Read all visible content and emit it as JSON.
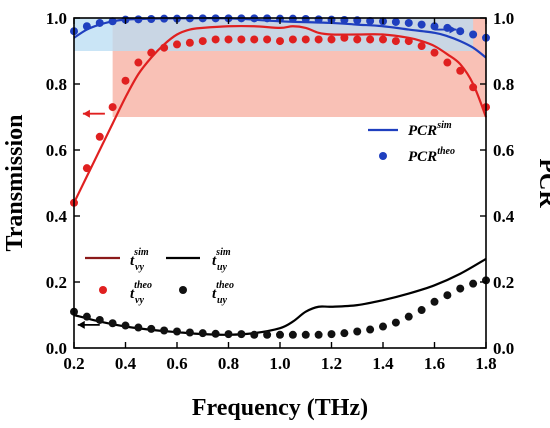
{
  "chart_data": {
    "type": "line",
    "xlabel": "Frequency (THz)",
    "ylabel_left": "Transmission",
    "ylabel_right": "PCR",
    "xlim": [
      0.2,
      1.8
    ],
    "ylim_left": [
      0.0,
      1.0
    ],
    "ylim_right": [
      0.0,
      1.0
    ],
    "x_ticks": [
      "0.2",
      "0.4",
      "0.6",
      "0.8",
      "1.0",
      "1.2",
      "1.4",
      "1.6",
      "1.8"
    ],
    "y_ticks_left": [
      "0.0",
      "0.2",
      "0.4",
      "0.6",
      "0.8",
      "1.0"
    ],
    "y_ticks_right": [
      "0.0",
      "0.2",
      "0.4",
      "0.6",
      "0.8",
      "1.0"
    ],
    "grid": false,
    "shaded_regions": [
      {
        "color": "#f9c1b6",
        "x": [
          0.35,
          1.8
        ],
        "y": [
          0.7,
          1.0
        ]
      },
      {
        "color": "#b8dcf3",
        "x": [
          0.2,
          1.75
        ],
        "y": [
          0.9,
          1.0
        ]
      }
    ],
    "arrows": [
      {
        "direction": "left",
        "color": "#e02020",
        "at_x": 0.32,
        "at_y": 0.71
      },
      {
        "direction": "right",
        "color": "#1f3fbf",
        "at_x": 1.6,
        "at_y": 0.965
      },
      {
        "direction": "left",
        "color": "#000000",
        "at_x": 0.3,
        "at_y": 0.07
      }
    ],
    "series": [
      {
        "key": "t_vy_sim",
        "kind": "line",
        "color": "#e02020",
        "axis": "left",
        "legend_main": "t",
        "legend_sub": "vy",
        "legend_sup": "sim",
        "x": [
          0.2,
          0.25,
          0.3,
          0.35,
          0.4,
          0.45,
          0.5,
          0.55,
          0.6,
          0.65,
          0.7,
          0.8,
          0.9,
          1.0,
          1.05,
          1.1,
          1.15,
          1.2,
          1.3,
          1.4,
          1.5,
          1.55,
          1.6,
          1.65,
          1.7,
          1.75,
          1.8
        ],
        "y": [
          0.44,
          0.52,
          0.6,
          0.68,
          0.76,
          0.83,
          0.88,
          0.92,
          0.95,
          0.965,
          0.97,
          0.975,
          0.975,
          0.97,
          0.975,
          0.97,
          0.955,
          0.95,
          0.95,
          0.95,
          0.94,
          0.93,
          0.915,
          0.89,
          0.86,
          0.8,
          0.7
        ]
      },
      {
        "key": "t_uy_sim",
        "kind": "line",
        "color": "#000000",
        "axis": "left",
        "legend_main": "t",
        "legend_sub": "uy",
        "legend_sup": "sim",
        "x": [
          0.2,
          0.3,
          0.4,
          0.5,
          0.6,
          0.7,
          0.8,
          0.9,
          1.0,
          1.05,
          1.1,
          1.15,
          1.2,
          1.3,
          1.4,
          1.5,
          1.6,
          1.7,
          1.8
        ],
        "y": [
          0.1,
          0.08,
          0.065,
          0.055,
          0.048,
          0.042,
          0.04,
          0.045,
          0.06,
          0.08,
          0.11,
          0.125,
          0.125,
          0.13,
          0.145,
          0.165,
          0.19,
          0.225,
          0.27
        ]
      },
      {
        "key": "PCR_sim",
        "kind": "line",
        "color": "#1f3fbf",
        "axis": "right",
        "legend_main": "PCR",
        "legend_sup": "sim",
        "x": [
          0.2,
          0.25,
          0.3,
          0.35,
          0.4,
          0.5,
          0.6,
          0.8,
          1.0,
          1.2,
          1.3,
          1.4,
          1.5,
          1.6,
          1.65,
          1.7,
          1.75,
          1.8
        ],
        "y": [
          0.94,
          0.965,
          0.98,
          0.99,
          0.995,
          0.998,
          0.999,
          0.999,
          0.99,
          0.985,
          0.98,
          0.975,
          0.965,
          0.955,
          0.945,
          0.93,
          0.91,
          0.88
        ]
      },
      {
        "key": "t_vy_theo",
        "kind": "scatter",
        "color": "#e02020",
        "axis": "left",
        "legend_main": "t",
        "legend_sub": "vy",
        "legend_sup": "theo",
        "x": [
          0.2,
          0.25,
          0.3,
          0.35,
          0.4,
          0.45,
          0.5,
          0.55,
          0.6,
          0.65,
          0.7,
          0.75,
          0.8,
          0.85,
          0.9,
          0.95,
          1.0,
          1.05,
          1.1,
          1.15,
          1.2,
          1.25,
          1.3,
          1.35,
          1.4,
          1.45,
          1.5,
          1.55,
          1.6,
          1.65,
          1.7,
          1.75,
          1.8
        ],
        "y": [
          0.44,
          0.545,
          0.64,
          0.73,
          0.81,
          0.865,
          0.895,
          0.91,
          0.92,
          0.925,
          0.93,
          0.935,
          0.935,
          0.935,
          0.935,
          0.935,
          0.93,
          0.935,
          0.935,
          0.935,
          0.935,
          0.94,
          0.935,
          0.935,
          0.935,
          0.93,
          0.93,
          0.915,
          0.895,
          0.865,
          0.84,
          0.79,
          0.73
        ]
      },
      {
        "key": "t_uy_theo",
        "kind": "scatter",
        "color": "#111111",
        "axis": "left",
        "legend_main": "t",
        "legend_sub": "uy",
        "legend_sup": "theo",
        "x": [
          0.2,
          0.25,
          0.3,
          0.35,
          0.4,
          0.45,
          0.5,
          0.55,
          0.6,
          0.65,
          0.7,
          0.75,
          0.8,
          0.85,
          0.9,
          0.95,
          1.0,
          1.05,
          1.1,
          1.15,
          1.2,
          1.25,
          1.3,
          1.35,
          1.4,
          1.45,
          1.5,
          1.55,
          1.6,
          1.65,
          1.7,
          1.75,
          1.8
        ],
        "y": [
          0.11,
          0.095,
          0.085,
          0.075,
          0.068,
          0.062,
          0.058,
          0.053,
          0.05,
          0.047,
          0.045,
          0.043,
          0.042,
          0.042,
          0.04,
          0.04,
          0.04,
          0.04,
          0.04,
          0.04,
          0.042,
          0.045,
          0.05,
          0.056,
          0.065,
          0.077,
          0.095,
          0.115,
          0.14,
          0.16,
          0.18,
          0.195,
          0.205
        ]
      },
      {
        "key": "PCR_theo",
        "kind": "scatter",
        "color": "#1f3fbf",
        "axis": "right",
        "legend_main": "PCR",
        "legend_sup": "theo",
        "x": [
          0.2,
          0.25,
          0.3,
          0.35,
          0.4,
          0.45,
          0.5,
          0.55,
          0.6,
          0.65,
          0.7,
          0.75,
          0.8,
          0.85,
          0.9,
          0.95,
          1.0,
          1.05,
          1.1,
          1.15,
          1.2,
          1.25,
          1.3,
          1.35,
          1.4,
          1.45,
          1.5,
          1.55,
          1.6,
          1.65,
          1.7,
          1.75,
          1.8
        ],
        "y": [
          0.96,
          0.975,
          0.985,
          0.99,
          0.995,
          0.996,
          0.997,
          0.998,
          0.998,
          0.999,
          0.999,
          0.999,
          0.999,
          0.999,
          0.999,
          0.999,
          0.998,
          0.998,
          0.997,
          0.996,
          0.995,
          0.994,
          0.993,
          0.991,
          0.99,
          0.988,
          0.985,
          0.98,
          0.975,
          0.97,
          0.96,
          0.95,
          0.94
        ]
      }
    ]
  }
}
